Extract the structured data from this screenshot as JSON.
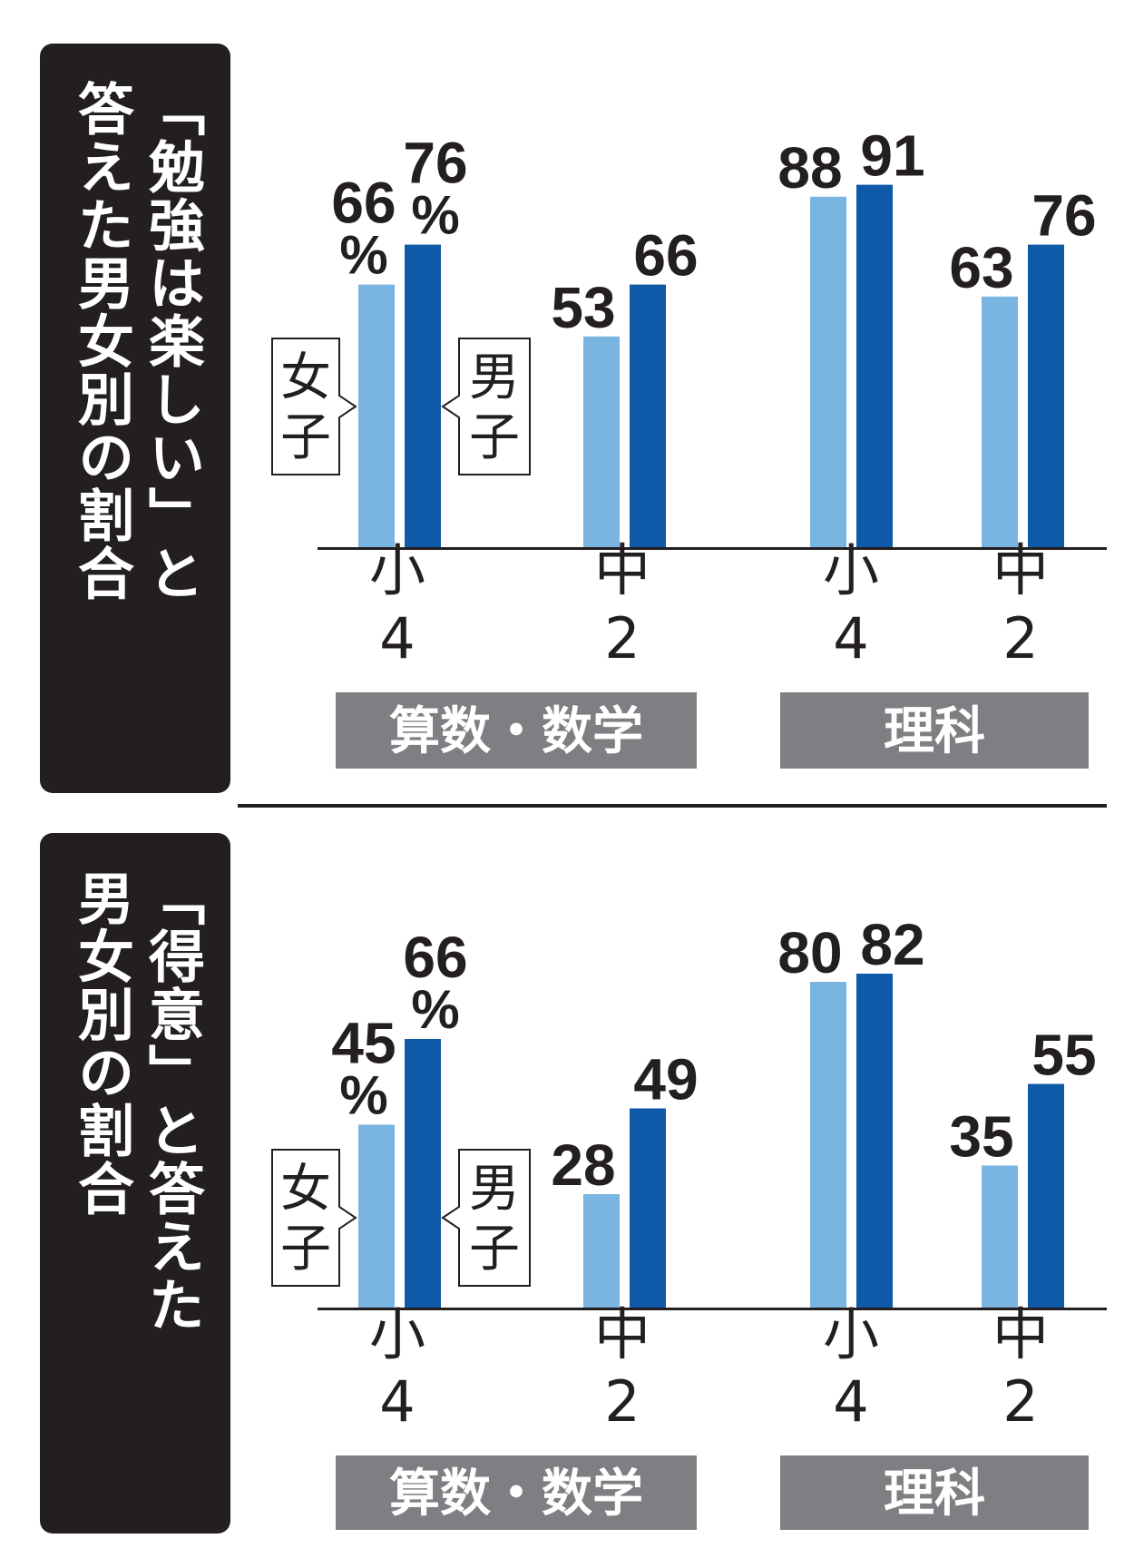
{
  "legend": {
    "girls": "女子",
    "boys": "男子"
  },
  "colors": {
    "girls": "#7ab4e0",
    "boys": "#0f5aa8",
    "subject_band": "#7d7f82",
    "title_box": "#231f20"
  },
  "chart_data": [
    {
      "type": "bar",
      "title_lines": [
        "「勉強は楽しい」と",
        "答えた男女別の割合"
      ],
      "groups": [
        {
          "subject": "算数・数学",
          "categories": [
            [
              "小",
              "4"
            ],
            [
              "中",
              "2"
            ]
          ]
        },
        {
          "subject": "理科",
          "categories": [
            [
              "小",
              "4"
            ],
            [
              "中",
              "2"
            ]
          ]
        }
      ],
      "series": [
        {
          "name": "女子",
          "values": [
            66,
            53,
            88,
            63
          ]
        },
        {
          "name": "男子",
          "values": [
            76,
            66,
            91,
            76
          ]
        }
      ],
      "value_unit": "%",
      "ylim": [
        0,
        100
      ]
    },
    {
      "type": "bar",
      "title_lines": [
        "「得意」と答えた",
        "男女別の割合"
      ],
      "groups": [
        {
          "subject": "算数・数学",
          "categories": [
            [
              "小",
              "4"
            ],
            [
              "中",
              "2"
            ]
          ]
        },
        {
          "subject": "理科",
          "categories": [
            [
              "小",
              "4"
            ],
            [
              "中",
              "2"
            ]
          ]
        }
      ],
      "series": [
        {
          "name": "女子",
          "values": [
            45,
            28,
            80,
            35
          ]
        },
        {
          "name": "男子",
          "values": [
            66,
            49,
            82,
            55
          ]
        }
      ],
      "value_unit": "%",
      "ylim": [
        0,
        100
      ]
    }
  ]
}
